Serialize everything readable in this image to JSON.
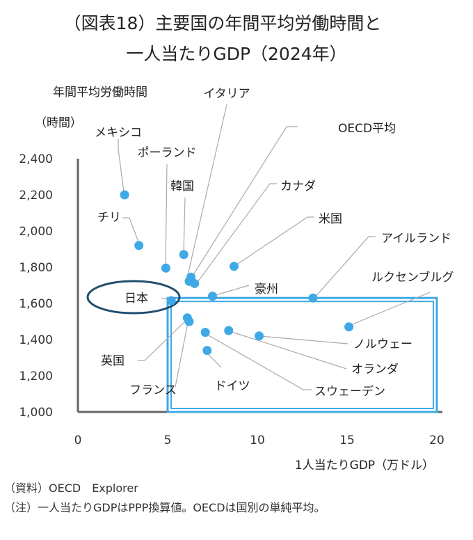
{
  "title_line1": "（図表18）主要国の年間平均労働時間と",
  "title_line2": "一人当たりGDP（2024年）",
  "notes": {
    "source": "（資料）OECD　Explorer",
    "remark": "（注）一人当たりGDPはPPP換算値。OECDは国別の単純平均。"
  },
  "chart_data": {
    "type": "scatter",
    "ylabel": "年間平均労働時間",
    "yunit": "（時間）",
    "xlabel": "1人当たりGDP（万ドル）",
    "xlim": [
      0,
      20
    ],
    "ylim": [
      1000,
      2400
    ],
    "xticks": [
      "0",
      "5",
      "10",
      "15",
      "20"
    ],
    "yticks": [
      "1,000",
      "1,200",
      "1,400",
      "1,600",
      "1,800",
      "2,000",
      "2,200",
      "2,400"
    ],
    "grid": false,
    "point_color": "#3fa9e6",
    "highlight_box_color": "#3fa9e6",
    "highlight_ellipse_color": "#1f4e6e",
    "points": [
      {
        "label": "メキシコ",
        "x": 2.6,
        "y": 2200
      },
      {
        "label": "チリ",
        "x": 3.4,
        "y": 1920
      },
      {
        "label": "ポーランド",
        "x": 4.9,
        "y": 1795
      },
      {
        "label": "韓国",
        "x": 5.9,
        "y": 1870
      },
      {
        "label": "イタリア",
        "x": 6.2,
        "y": 1722
      },
      {
        "label": "日本",
        "x": 5.2,
        "y": 1615
      },
      {
        "label": "英国",
        "x": 6.1,
        "y": 1520
      },
      {
        "label": "フランス",
        "x": 6.2,
        "y": 1500
      },
      {
        "label": "ドイツ",
        "x": 7.2,
        "y": 1340
      },
      {
        "label": "豪州",
        "x": 7.5,
        "y": 1640
      },
      {
        "label": "カナダ",
        "x": 6.5,
        "y": 1710
      },
      {
        "label": "米国",
        "x": 8.7,
        "y": 1805
      },
      {
        "label": "OECD平均",
        "x": 6.3,
        "y": 1745
      },
      {
        "label": "アイルランド",
        "x": 13.1,
        "y": 1630
      },
      {
        "label": "ルクセンブルグ",
        "x": 15.1,
        "y": 1470
      },
      {
        "label": "ノルウェー",
        "x": 10.1,
        "y": 1420
      },
      {
        "label": "オランダ",
        "x": 8.4,
        "y": 1450
      },
      {
        "label": "スウェーデン",
        "x": 7.1,
        "y": 1440
      }
    ]
  }
}
